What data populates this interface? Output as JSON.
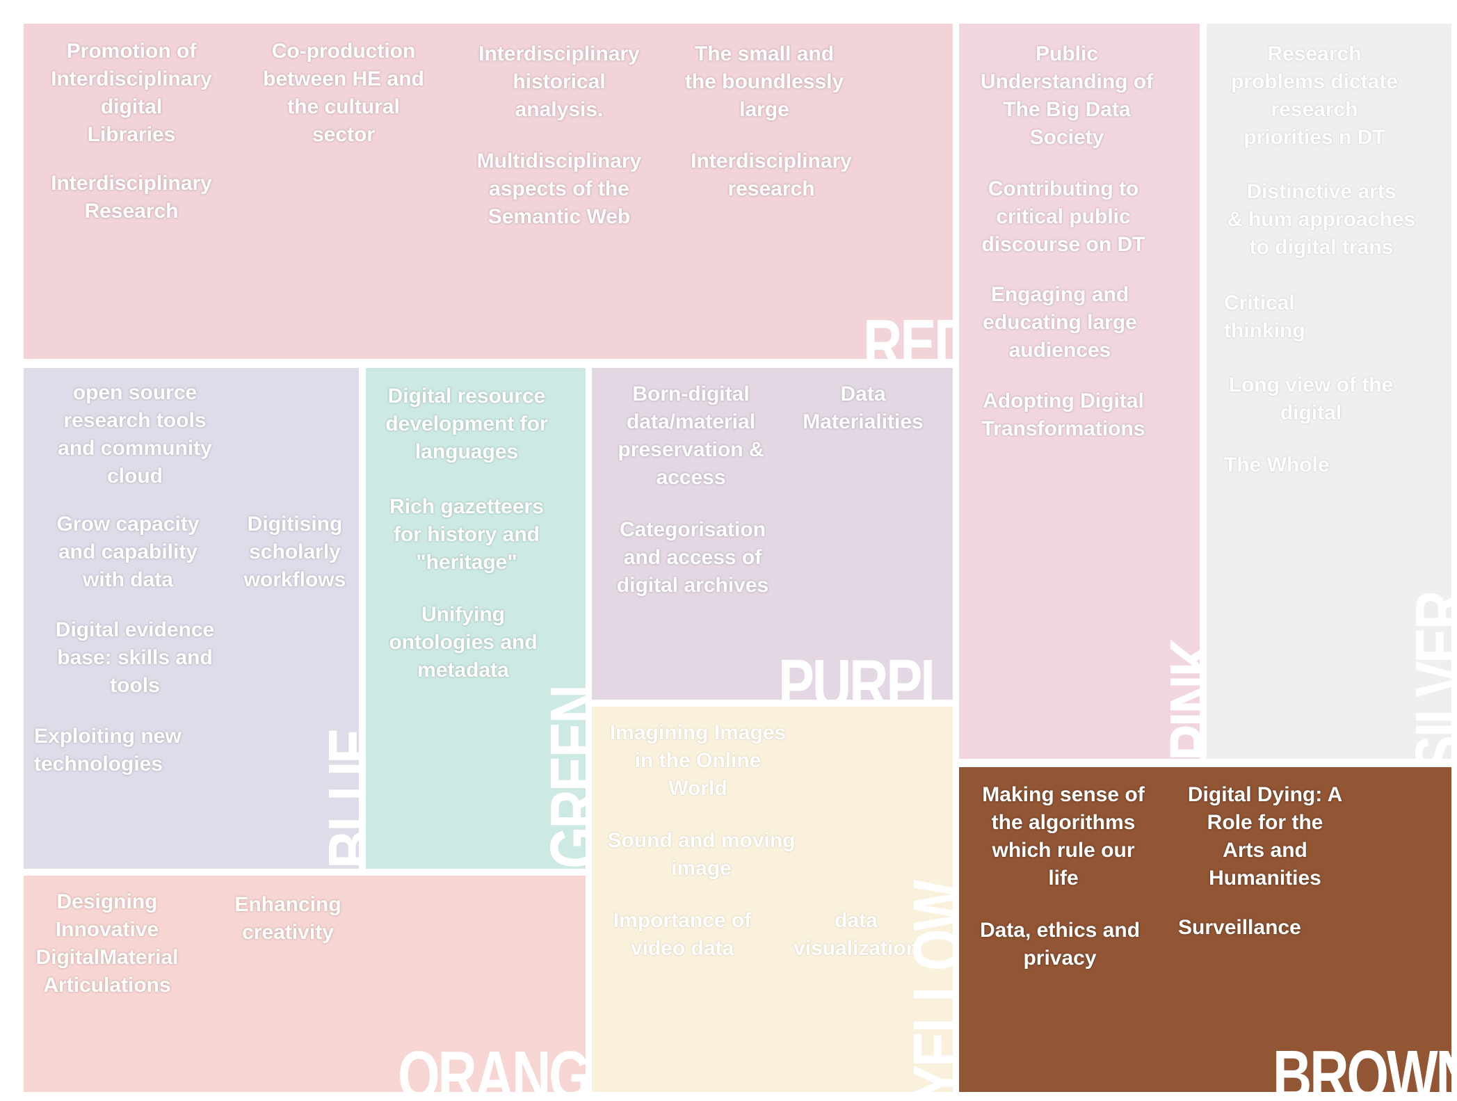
{
  "panels": {
    "red": {
      "label": "RED",
      "color": "#f1d3d8",
      "items": [
        "Promotion of\nInterdisciplinary\ndigital\nLibraries",
        "Interdisciplinary\nResearch",
        "Co-production\nbetween HE and\nthe cultural\nsector",
        "Interdisciplinary\nhistorical\nanalysis.",
        "Multidisciplinary\naspects of the\nSemantic Web",
        "The small and\nthe boundlessly\nlarge",
        "Interdisciplinary\nresearch"
      ]
    },
    "pink": {
      "label": "PINK",
      "color": "#f1d6e1",
      "items": [
        "Public\nUnderstanding of\nThe Big Data\nSociety",
        "Contributing to\ncritical public\ndiscourse on DT",
        "Engaging and\neducating large\naudiences",
        "Adopting Digital\nTransformations"
      ]
    },
    "silver": {
      "label": "SILVER",
      "color": "#efefef",
      "items": [
        "Research\nproblems dictate\nresearch\npriorities n DT",
        "Distinctive arts\n& hum approaches\nto digital trans",
        "Critical\nthinking",
        "Long view of the\ndigital",
        "The Whole"
      ]
    },
    "blue": {
      "label": "BLUE",
      "color": "#dfdbe9",
      "items": [
        "open source\nresearch tools\nand community\ncloud",
        "Grow capacity\nand capability\nwith data",
        "Digitising\nscholarly\nworkflows",
        "Digital evidence\nbase: skills and\ntools",
        "Exploiting new\ntechnologies"
      ]
    },
    "green": {
      "label": "GREEN",
      "color": "#cde9e3",
      "items": [
        "Digital resource\ndevelopment for\nlanguages",
        "Rich gazetteers\nfor history and\n\"heritage\"",
        "Unifying\nontologies and\nmetadata"
      ]
    },
    "purple": {
      "label": "PURPLE",
      "color": "#e3d7e4",
      "items": [
        "Born-digital\ndata/material\npreservation &\naccess",
        "Data\nMaterialities",
        "Categorisation\nand access of\ndigital archives"
      ]
    },
    "yellow": {
      "label": "YELLOW",
      "color": "#f9f1dc",
      "items": [
        "Imagining Images\nin the Online\nWorld",
        "Sound and moving\nimage",
        "Importance of\nvideo data",
        "data\nvisualization"
      ]
    },
    "orange": {
      "label": "ORANGE",
      "color": "#f7d5d2",
      "items": [
        "Designing\nInnovative\nDigitalMaterial\nArticulations",
        "Enhancing\ncreativity"
      ]
    },
    "brown": {
      "label": "BROWN",
      "color": "#935634",
      "items": [
        "Making sense of\nthe algorithms\nwhich rule our\nlife",
        "Data, ethics and\nprivacy",
        "Digital Dying: A\nRole for the\nArts and\nHumanities",
        "Surveillance"
      ]
    }
  }
}
